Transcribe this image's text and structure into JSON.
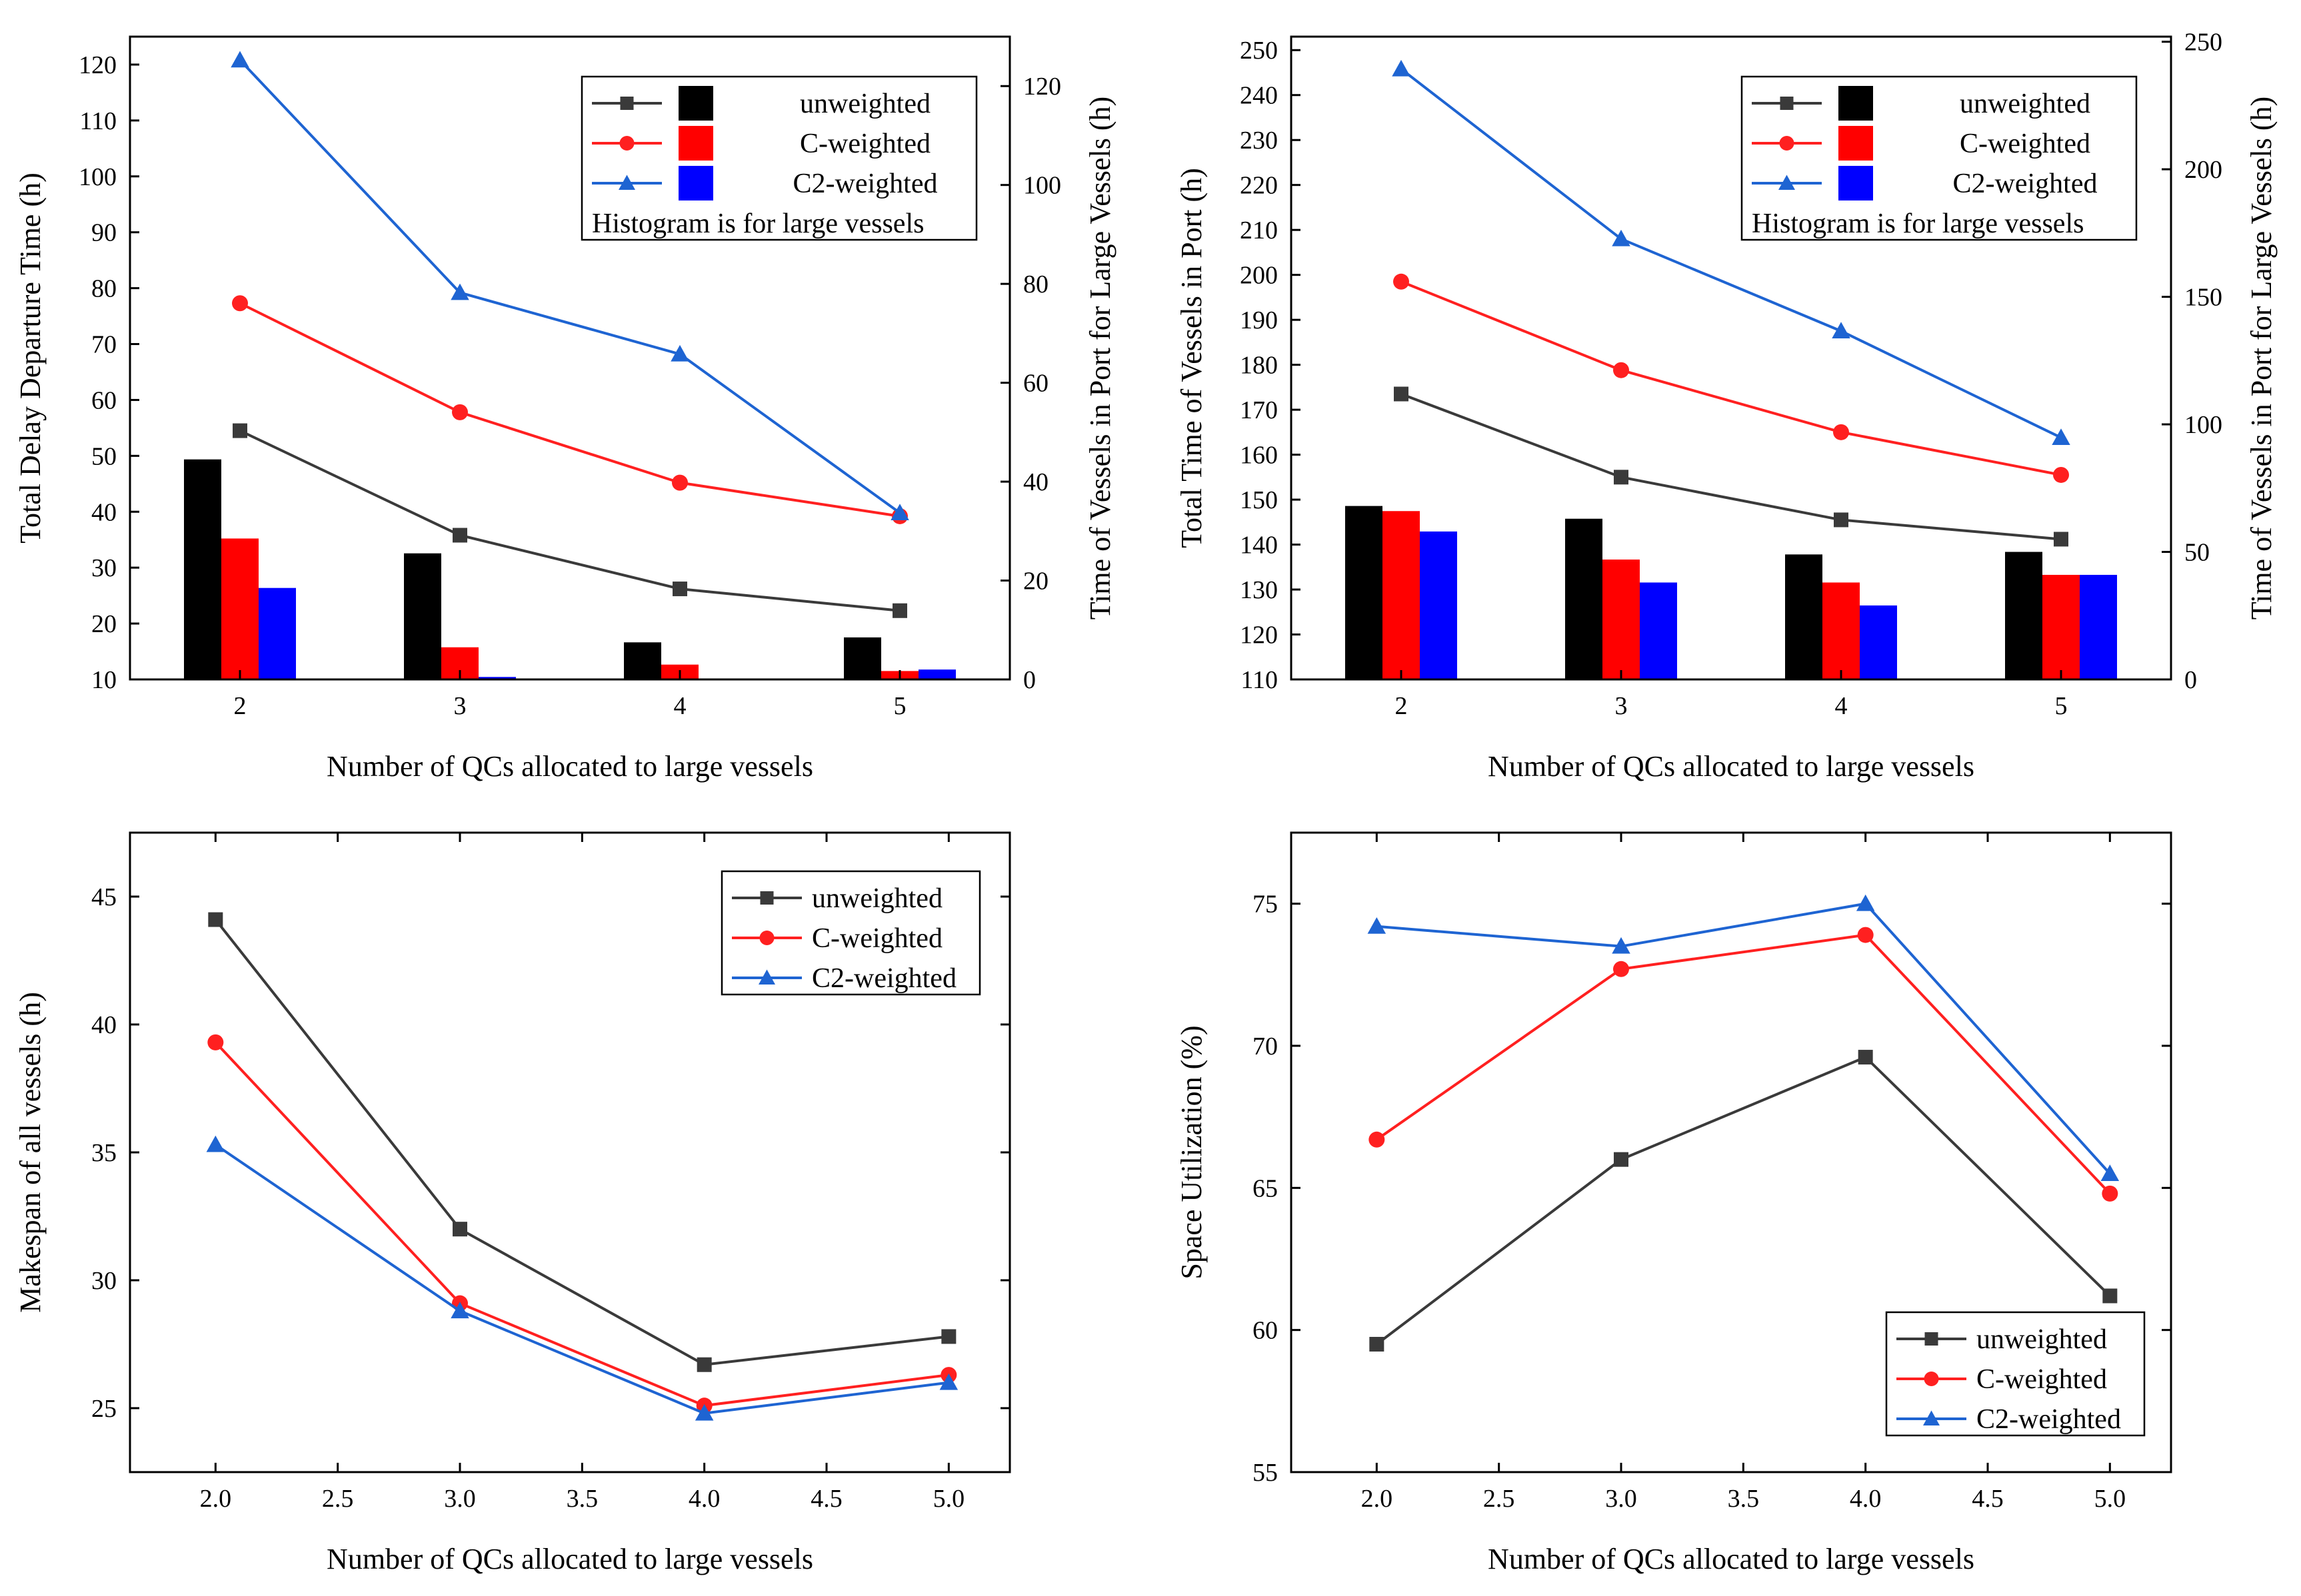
{
  "colors": {
    "unweighted": "#3a3a3a",
    "c_weighted": "#ff2020",
    "c2_weighted": "#1e64d2",
    "bar_unweighted": "#000000",
    "bar_c_weighted": "#ff0000",
    "bar_c2_weighted": "#0000ff"
  },
  "chart_data": [
    {
      "id": "p1",
      "type": "bar+line",
      "xlabel": "Number of QCs allocated to large vessels",
      "ylabel": "Total Delay Departure Time (h)",
      "y2label": "Time of Vessels in Port for Large Vessels  (h)",
      "categories": [
        "2",
        "3",
        "4",
        "5"
      ],
      "ylim": [
        10,
        125
      ],
      "yticks": [
        "10",
        "20",
        "30",
        "40",
        "50",
        "60",
        "70",
        "80",
        "90",
        "100",
        "110",
        "120"
      ],
      "y2lim": [
        0,
        130
      ],
      "y2ticks": [
        "0",
        "20",
        "40",
        "60",
        "80",
        "100",
        "120"
      ],
      "lines": [
        {
          "name": "unweighted",
          "marker": "square",
          "values": [
            54.5,
            35.8,
            26.2,
            22.3
          ]
        },
        {
          "name": "C-weighted",
          "marker": "circle",
          "values": [
            77.3,
            57.8,
            45.2,
            39.2
          ]
        },
        {
          "name": "C2-weighted",
          "marker": "triangle",
          "values": [
            120.8,
            79.2,
            68.2,
            39.8
          ]
        }
      ],
      "bars": [
        {
          "name": "unweighted",
          "values": [
            44.5,
            25.5,
            7.5,
            8.5
          ]
        },
        {
          "name": "C-weighted",
          "values": [
            28.5,
            6.5,
            3.0,
            1.7
          ]
        },
        {
          "name": "C2-weighted",
          "values": [
            18.5,
            0.5,
            0,
            2.0
          ]
        }
      ],
      "legend": {
        "position": "top-right",
        "entries": [
          "unweighted",
          "C-weighted",
          "C2-weighted"
        ],
        "note": "Histogram is for large vessels"
      }
    },
    {
      "id": "p2",
      "type": "bar+line",
      "xlabel": "Number of QCs allocated to large vessels",
      "ylabel": "Total Time of Vessels in Port  (h)",
      "y2label": "Time of Vessels in Port for Large Vessels  (h)",
      "categories": [
        "2",
        "3",
        "4",
        "5"
      ],
      "ylim": [
        110,
        253
      ],
      "yticks": [
        "110",
        "120",
        "130",
        "140",
        "150",
        "160",
        "170",
        "180",
        "190",
        "200",
        "210",
        "220",
        "230",
        "240",
        "250"
      ],
      "y2lim": [
        0,
        252
      ],
      "y2ticks": [
        "0",
        "50",
        "100",
        "150",
        "200",
        "250"
      ],
      "lines": [
        {
          "name": "unweighted",
          "marker": "square",
          "values": [
            173.5,
            155.0,
            145.5,
            141.2
          ]
        },
        {
          "name": "C-weighted",
          "marker": "circle",
          "values": [
            198.5,
            178.8,
            165.0,
            155.5
          ]
        },
        {
          "name": "C2-weighted",
          "marker": "triangle",
          "values": [
            245.8,
            208.0,
            187.5,
            163.8
          ]
        }
      ],
      "bars": [
        {
          "name": "unweighted",
          "values": [
            68,
            63,
            49,
            50
          ]
        },
        {
          "name": "C-weighted",
          "values": [
            66,
            47,
            38,
            41
          ]
        },
        {
          "name": "C2-weighted",
          "values": [
            58,
            38,
            29,
            41
          ]
        }
      ],
      "legend": {
        "position": "top-right",
        "entries": [
          "unweighted",
          "C-weighted",
          "C2-weighted"
        ],
        "note": "Histogram is for large vessels"
      }
    },
    {
      "id": "p3",
      "type": "line",
      "xlabel": "Number of QCs allocated to large vessels",
      "ylabel": "Makespan of all vessels  (h)",
      "x": [
        2.0,
        3.0,
        4.0,
        5.0
      ],
      "xlim": [
        1.65,
        5.25
      ],
      "xticks": [
        "2.0",
        "2.5",
        "3.0",
        "3.5",
        "4.0",
        "4.5",
        "5.0"
      ],
      "ylim": [
        22.5,
        47.5
      ],
      "yticks": [
        "25",
        "30",
        "35",
        "40",
        "45"
      ],
      "series": [
        {
          "name": "unweighted",
          "marker": "square",
          "values": [
            44.1,
            32.0,
            26.7,
            27.8
          ]
        },
        {
          "name": "C-weighted",
          "marker": "circle",
          "values": [
            39.3,
            29.1,
            25.1,
            26.3
          ]
        },
        {
          "name": "C2-weighted",
          "marker": "triangle",
          "values": [
            35.3,
            28.8,
            24.8,
            26.0
          ]
        }
      ],
      "legend": {
        "position": "top-right",
        "entries": [
          "unweighted",
          "C-weighted",
          "C2-weighted"
        ]
      }
    },
    {
      "id": "p4",
      "type": "line",
      "xlabel": "Number of QCs allocated to large vessels",
      "ylabel": "Space Utilization (%)",
      "x": [
        2.0,
        3.0,
        4.0,
        5.0
      ],
      "xlim": [
        1.65,
        5.25
      ],
      "xticks": [
        "2.0",
        "2.5",
        "3.0",
        "3.5",
        "4.0",
        "4.5",
        "5.0"
      ],
      "ylim": [
        55,
        77.5
      ],
      "yticks": [
        "55",
        "60",
        "65",
        "70",
        "75"
      ],
      "series": [
        {
          "name": "unweighted",
          "marker": "square",
          "values": [
            59.5,
            66.0,
            69.6,
            61.2
          ]
        },
        {
          "name": "C-weighted",
          "marker": "circle",
          "values": [
            66.7,
            72.7,
            73.9,
            64.8
          ]
        },
        {
          "name": "C2-weighted",
          "marker": "triangle",
          "values": [
            74.2,
            73.5,
            75.0,
            65.5
          ]
        }
      ],
      "legend": {
        "position": "bottom-right",
        "entries": [
          "unweighted",
          "C-weighted",
          "C2-weighted"
        ]
      }
    }
  ]
}
